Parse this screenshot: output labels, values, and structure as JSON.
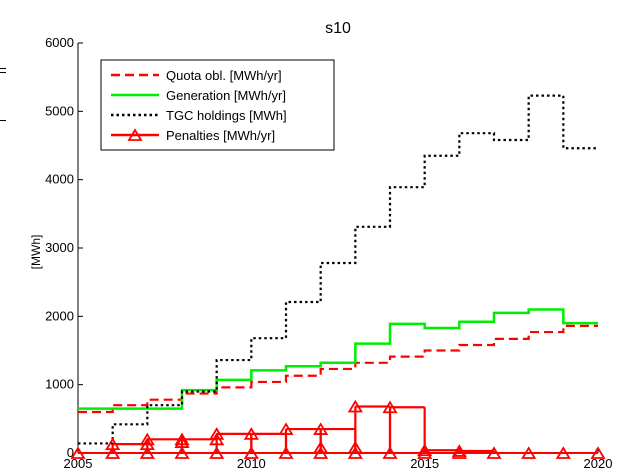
{
  "chart_data": {
    "type": "line",
    "title": "s10",
    "xlabel": "",
    "ylabel": "[MWh]",
    "xlim": [
      2005,
      2020
    ],
    "ylim": [
      0,
      6000
    ],
    "x_ticks": [
      2005,
      2010,
      2015,
      2020
    ],
    "y_ticks": [
      0,
      1000,
      2000,
      3000,
      4000,
      5000,
      6000
    ],
    "grid": false,
    "legend_position": "top-left",
    "step": true,
    "series": [
      {
        "name": "Quota obl. [MWh/yr]",
        "color": "#ff0000",
        "style": "dashed",
        "marker": "none",
        "x": [
          2005,
          2006,
          2007,
          2008,
          2009,
          2010,
          2011,
          2012,
          2013,
          2014,
          2015,
          2016,
          2017,
          2018,
          2019,
          2020
        ],
        "y": [
          600,
          700,
          780,
          870,
          960,
          1040,
          1130,
          1230,
          1320,
          1410,
          1500,
          1580,
          1670,
          1770,
          1860,
          1860
        ]
      },
      {
        "name": "Generation [MWh/yr]",
        "color": "#00ee00",
        "style": "solid",
        "marker": "none",
        "x": [
          2005,
          2006,
          2007,
          2008,
          2009,
          2010,
          2011,
          2012,
          2013,
          2014,
          2015,
          2016,
          2017,
          2018,
          2019,
          2020
        ],
        "y": [
          650,
          650,
          650,
          920,
          1070,
          1210,
          1270,
          1320,
          1600,
          1890,
          1830,
          1920,
          2050,
          2100,
          1900,
          1900
        ]
      },
      {
        "name": "TGC holdings [MWh]",
        "color": "#000000",
        "style": "dotted",
        "marker": "none",
        "x": [
          2005,
          2006,
          2007,
          2008,
          2009,
          2010,
          2011,
          2012,
          2013,
          2014,
          2015,
          2016,
          2017,
          2018,
          2019,
          2020
        ],
        "y": [
          140,
          420,
          700,
          900,
          1360,
          1680,
          2210,
          2780,
          3310,
          3890,
          4350,
          4680,
          4580,
          5230,
          4460,
          4460
        ]
      },
      {
        "name": "Penalties [MWh/yr]",
        "color": "#ff0000",
        "style": "solid",
        "marker": "triangle",
        "x": [
          2005,
          2006,
          2007,
          2008,
          2009,
          2010,
          2011,
          2012,
          2013,
          2014,
          2015,
          2016,
          2017,
          2018,
          2019,
          2020
        ],
        "y": [
          0,
          130,
          200,
          200,
          280,
          280,
          350,
          350,
          680,
          670,
          40,
          30,
          0,
          0,
          0,
          0
        ],
        "low": [
          0,
          0,
          130,
          160,
          200,
          0,
          0,
          80,
          80,
          0,
          0,
          0,
          0,
          0,
          0,
          0
        ]
      }
    ]
  }
}
